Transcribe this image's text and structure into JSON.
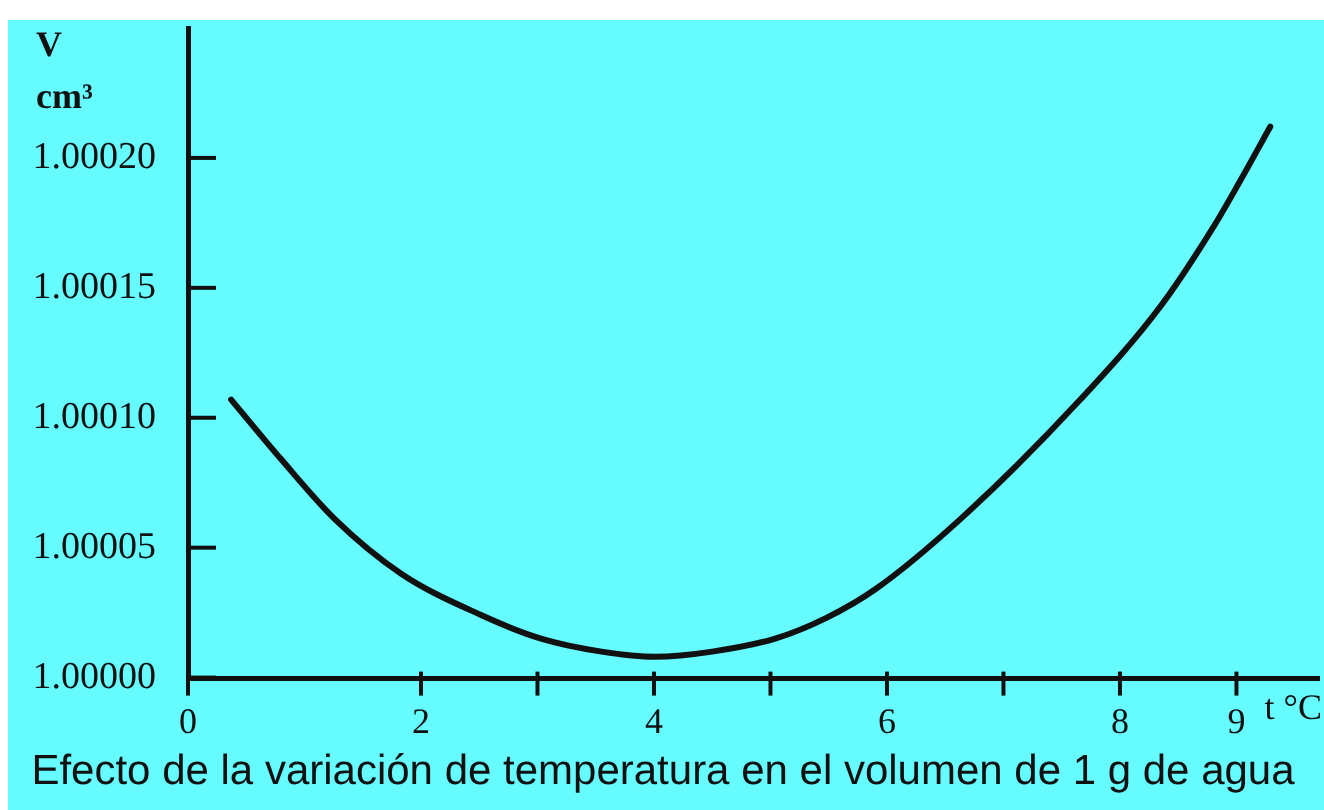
{
  "chart_data": {
    "type": "line",
    "title": "Efecto de la variación de temperatura en el volumen de 1 g de agua",
    "xlabel": "t °C",
    "ylabel": "V cm³",
    "x": [
      0.37,
      0.8,
      1.26,
      1.83,
      2.52,
      3.03,
      3.55,
      4.01,
      4.5,
      5.04,
      5.48,
      5.9,
      6.63,
      7.66,
      8.35,
      8.81,
      9.03,
      9.29
    ],
    "values": [
      1.000107,
      1.000084,
      1.000061,
      1.00004,
      1.000024,
      1.000015,
      1.00001,
      1.000008,
      1.00001,
      1.000015,
      1.000023,
      1.000034,
      1.000061,
      1.000107,
      1.000143,
      1.000174,
      1.000191,
      1.000212
    ],
    "color": "#111111",
    "marker": "none",
    "xlim": [
      0,
      9.7
    ],
    "xticks": [
      0,
      2,
      {
        "value": 3,
        "label": null
      },
      4,
      {
        "value": 5,
        "label": null
      },
      6,
      {
        "value": 7,
        "label": null
      },
      8,
      9
    ],
    "ylim": [
      1.0,
      1.00025
    ],
    "yticks": [
      {
        "value": 1.0,
        "label": "1.00000"
      },
      {
        "value": 1.00005,
        "label": "1.00005"
      },
      {
        "value": 1.0001,
        "label": "1.00010"
      },
      {
        "value": 1.00015,
        "label": "1.00015"
      },
      {
        "value": 1.0002,
        "label": "1.00020"
      }
    ]
  }
}
